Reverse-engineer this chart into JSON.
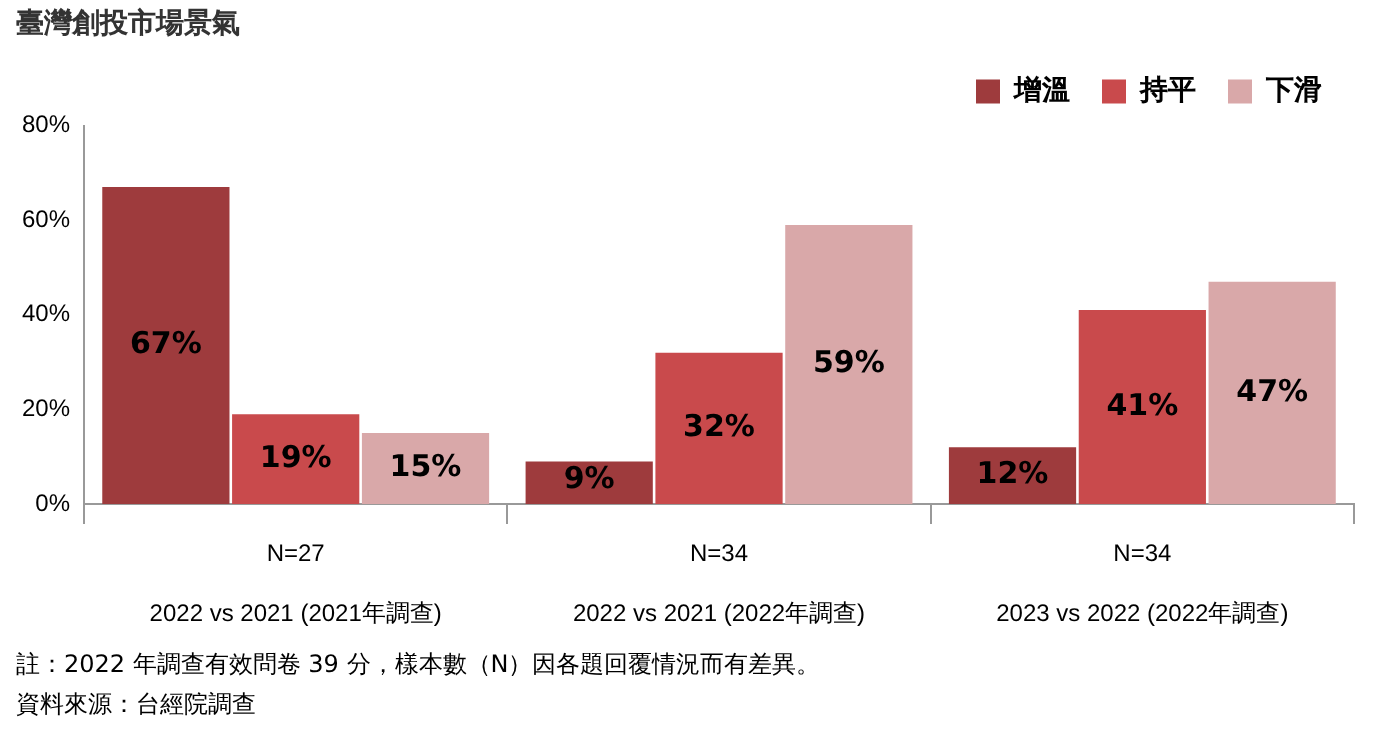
{
  "chart_data": {
    "type": "bar",
    "title": "臺灣創投市場景氣",
    "categories": [
      "N=27\n2022 vs 2021 (2021年調查)",
      "N=34\n2022 vs 2021 (2022年調查)",
      "N=34\n2023 vs 2022 (2022年調查)"
    ],
    "series": [
      {
        "name": "增溫",
        "color": "#9e3b3d",
        "values": [
          67,
          9,
          12
        ],
        "value_labels": [
          "67%",
          "9%",
          "12%"
        ]
      },
      {
        "name": "持平",
        "color": "#c94a4c",
        "values": [
          19,
          32,
          41
        ],
        "value_labels": [
          "19%",
          "32%",
          "41%"
        ]
      },
      {
        "name": "下滑",
        "color": "#d9a8a9",
        "values": [
          15,
          59,
          47
        ],
        "value_labels": [
          "15%",
          "59%",
          "47%"
        ]
      }
    ],
    "ylim": [
      0,
      80
    ],
    "yticks": [
      {
        "value": 0,
        "label": "0%"
      },
      {
        "value": 20,
        "label": "20%"
      },
      {
        "value": 40,
        "label": "40%"
      },
      {
        "value": 60,
        "label": "60%"
      },
      {
        "value": 80,
        "label": "80%"
      }
    ],
    "legend": "top right",
    "annotations": [
      "註：2022 年調查有效問卷 39 分，樣本數（N）因各題回覆情況而有差異。",
      "資料來源：台經院調查"
    ]
  }
}
